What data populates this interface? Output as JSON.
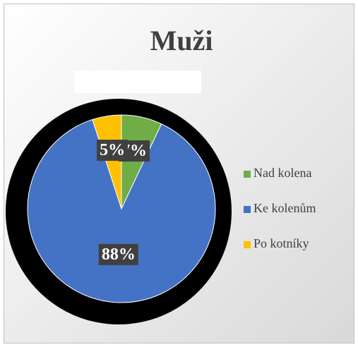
{
  "chart_data": {
    "type": "pie",
    "title": "Muži",
    "categories": [
      "Nad kolena",
      "Ke kolenům",
      "Po kotníky"
    ],
    "values": [
      7,
      88,
      5
    ],
    "value_labels": [
      "7%",
      "88%",
      "5%"
    ],
    "colors": [
      "#70ad47",
      "#4472c4",
      "#ffc000"
    ],
    "legend": "right"
  }
}
